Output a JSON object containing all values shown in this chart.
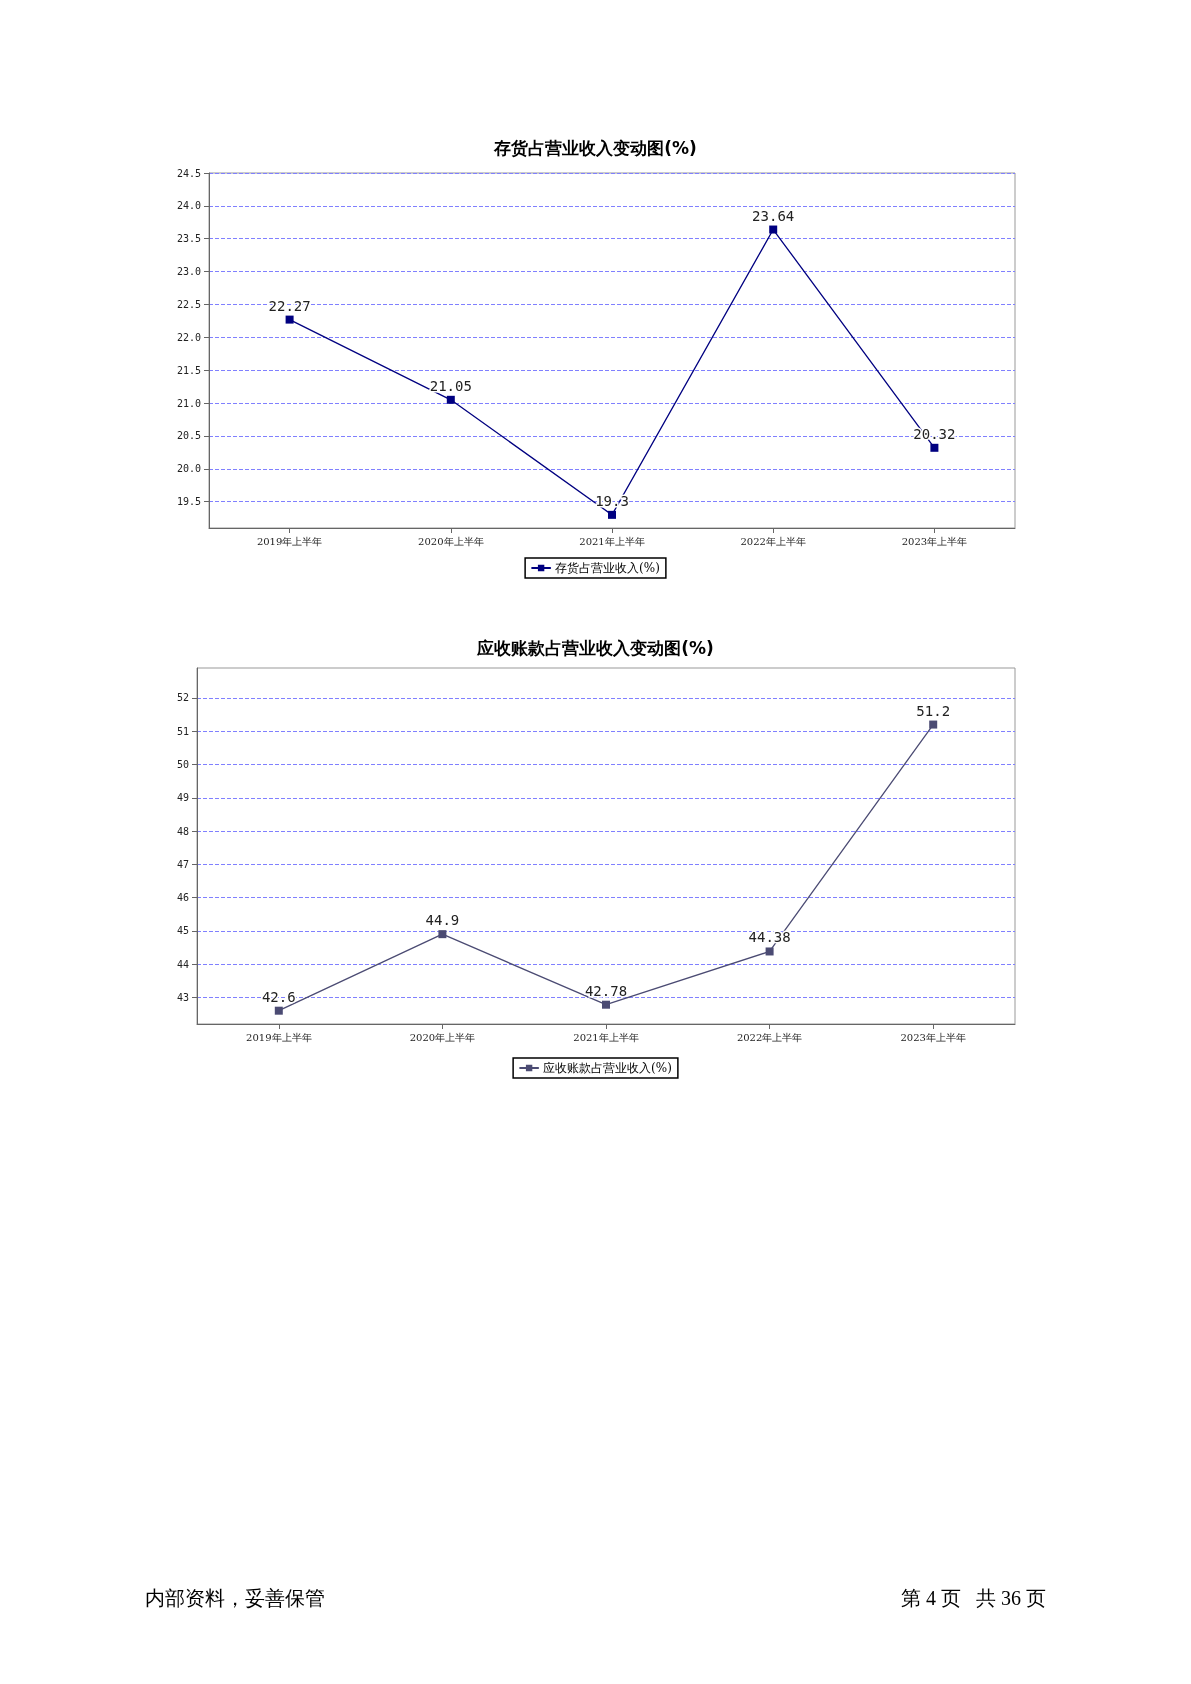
{
  "chart_data": [
    {
      "type": "line",
      "title": "存货占营业收入变动图(%)",
      "categories": [
        "2019年上半年",
        "2020年上半年",
        "2021年上半年",
        "2022年上半年",
        "2023年上半年"
      ],
      "series": [
        {
          "name": "存货占营业收入(%)",
          "color": "#000080",
          "values": [
            22.27,
            21.05,
            19.3,
            23.64,
            20.32
          ]
        }
      ],
      "ylim": [
        19.1,
        24.5
      ],
      "yticks": [
        19.5,
        {
          "value": 20,
          "label": "20.0"
        },
        20.5,
        {
          "value": 21,
          "label": "21.0"
        },
        21.5,
        {
          "value": 22,
          "label": "22.0"
        },
        22.5,
        {
          "value": 23,
          "label": "23.0"
        },
        23.5,
        {
          "value": 24,
          "label": "24.0"
        },
        24.5
      ],
      "grid": "y",
      "legend": "bottom",
      "marker": "square",
      "line_style": "solid",
      "data_labels": true
    },
    {
      "type": "line",
      "title": "应收账款占营业收入变动图(%)",
      "categories": [
        "2019年上半年",
        "2020年上半年",
        "2021年上半年",
        "2022年上半年",
        "2023年上半年"
      ],
      "series": [
        {
          "name": "应收账款占营业收入(%)",
          "color": "#4b4b73",
          "values": [
            42.6,
            44.9,
            42.78,
            44.38,
            51.2
          ]
        }
      ],
      "ylim": [
        42.2,
        52.9
      ],
      "yticks": [
        43,
        44,
        45,
        46,
        47,
        48,
        49,
        50,
        51,
        52
      ],
      "grid": "y",
      "legend": "bottom",
      "marker": "square",
      "line_style": "solid",
      "data_labels": true,
      "annotations": [
        "内部资料，妥善保管",
        "第 4 页   共 36 页"
      ]
    }
  ]
}
